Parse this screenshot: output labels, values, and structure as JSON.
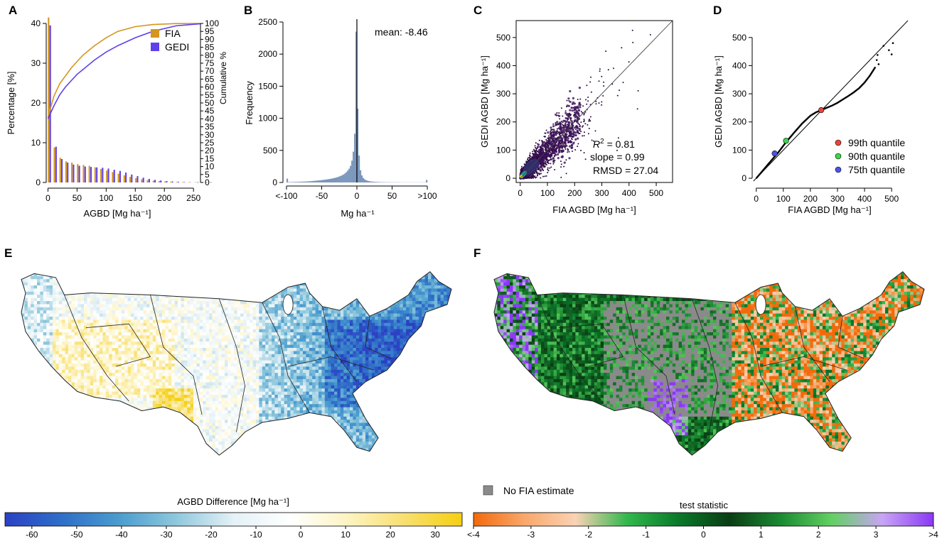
{
  "panels": {
    "A": {
      "label": "A"
    },
    "B": {
      "label": "B"
    },
    "C": {
      "label": "C"
    },
    "D": {
      "label": "D"
    },
    "E": {
      "label": "E"
    },
    "F": {
      "label": "F"
    }
  },
  "chart_data": [
    {
      "id": "A",
      "type": "bar",
      "xlabel": "AGBD [Mg ha⁻¹]",
      "ylabel": "Percentage [%]",
      "ylabel_right": "Cumulative %",
      "xlim": [
        -3,
        262
      ],
      "ylim": [
        0,
        40
      ],
      "ylim_right": [
        0,
        100
      ],
      "x_ticks": [
        "0",
        "50",
        "100",
        "150",
        "200",
        "250"
      ],
      "x_tick_values": [
        0,
        50,
        100,
        150,
        200,
        250
      ],
      "y_ticks": [
        "0",
        "10",
        "20",
        "30",
        "40"
      ],
      "y_tick_values": [
        0,
        10,
        20,
        30,
        40
      ],
      "y_right_ticks": [
        "0",
        "5",
        "10",
        "15",
        "20",
        "25",
        "30",
        "35",
        "40",
        "45",
        "50",
        "55",
        "60",
        "65",
        "70",
        "75",
        "80",
        "85",
        "90",
        "95",
        "100"
      ],
      "y_right_tick_values": [
        0,
        5,
        10,
        15,
        20,
        25,
        30,
        35,
        40,
        45,
        50,
        55,
        60,
        65,
        70,
        75,
        80,
        85,
        90,
        95,
        100
      ],
      "bin_starts": [
        0,
        10,
        20,
        30,
        40,
        50,
        60,
        70,
        80,
        90,
        100,
        110,
        120,
        130,
        140,
        150,
        160,
        170,
        180,
        190,
        200,
        210,
        220,
        230,
        240,
        250
      ],
      "series": [
        {
          "name": "FIA",
          "color": "#d4961c",
          "values": [
            41.5,
            8.8,
            6.2,
            5.3,
            5.0,
            4.6,
            4.4,
            4.2,
            3.8,
            3.4,
            3.0,
            2.6,
            2.2,
            1.8,
            1.4,
            1.1,
            0.8,
            0.6,
            0.45,
            0.35,
            0.25,
            0.18,
            0.12,
            0.08,
            0.05,
            0.03
          ],
          "cumulative_x": [
            0,
            10,
            20,
            30,
            40,
            50,
            60,
            80,
            100,
            120,
            150,
            180,
            220,
            262
          ],
          "cumulative": [
            41,
            54,
            62,
            67,
            72,
            76,
            80,
            86,
            91,
            95,
            98,
            99.3,
            99.9,
            100
          ]
        },
        {
          "name": "GEDI",
          "color": "#6040ea",
          "values": [
            39.5,
            9.0,
            5.9,
            5.0,
            4.5,
            4.2,
            4.0,
            3.9,
            3.8,
            3.7,
            3.5,
            3.2,
            2.9,
            2.5,
            2.0,
            1.6,
            1.2,
            0.9,
            0.65,
            0.5,
            0.35,
            0.25,
            0.18,
            0.12,
            0.08,
            0.05
          ],
          "cumulative_x": [
            0,
            10,
            20,
            30,
            40,
            50,
            60,
            80,
            100,
            120,
            150,
            180,
            220,
            262
          ],
          "cumulative": [
            40,
            48,
            55,
            60,
            64,
            68,
            71,
            77,
            82,
            86,
            91,
            95,
            98.5,
            99.8
          ]
        }
      ],
      "legend": [
        "FIA",
        "GEDI"
      ]
    },
    {
      "id": "B",
      "type": "bar",
      "title_note": "mean: -8.46",
      "xlabel": "Mg ha⁻¹",
      "ylabel": "Frequency",
      "xlim": [
        -105,
        105
      ],
      "ylim": [
        0,
        2500
      ],
      "x_ticks": [
        "<-100",
        "-50",
        "0",
        "50",
        ">100"
      ],
      "x_tick_values": [
        -100,
        -50,
        0,
        50,
        100
      ],
      "y_ticks": [
        "0",
        "500",
        "1000",
        "1500",
        "2000",
        "2500"
      ],
      "y_tick_values": [
        0,
        500,
        1000,
        1500,
        2000,
        2500
      ],
      "bin_width": 2,
      "bar_color": "#7b97bd",
      "vline": 0,
      "bins_x": [
        -100,
        -98,
        -96,
        -94,
        -92,
        -90,
        -88,
        -86,
        -84,
        -82,
        -80,
        -78,
        -76,
        -74,
        -72,
        -70,
        -68,
        -66,
        -64,
        -62,
        -60,
        -58,
        -56,
        -54,
        -52,
        -50,
        -48,
        -46,
        -44,
        -42,
        -40,
        -38,
        -36,
        -34,
        -32,
        -30,
        -28,
        -26,
        -24,
        -22,
        -20,
        -18,
        -16,
        -14,
        -12,
        -10,
        -8,
        -6,
        -4,
        -2,
        0,
        2,
        4,
        6,
        8,
        10,
        12,
        14,
        16,
        18,
        20,
        22,
        24,
        26,
        28,
        30,
        32,
        34,
        36,
        38,
        40,
        42,
        44,
        46,
        48,
        50,
        52,
        54,
        56,
        58,
        60,
        62,
        64,
        66,
        68,
        70,
        72,
        74,
        76,
        78,
        80,
        82,
        84,
        86,
        88,
        90,
        92,
        94,
        96,
        98
      ],
      "values": [
        60,
        6,
        6,
        7,
        7,
        8,
        9,
        9,
        10,
        11,
        12,
        13,
        14,
        15,
        16,
        18,
        19,
        21,
        23,
        25,
        27,
        29,
        31,
        33,
        35,
        38,
        41,
        44,
        47,
        50,
        54,
        58,
        62,
        67,
        72,
        78,
        85,
        93,
        102,
        112,
        125,
        140,
        160,
        185,
        215,
        260,
        340,
        480,
        760,
        2350,
        1150,
        420,
        190,
        110,
        70,
        48,
        35,
        27,
        21,
        17,
        14,
        12,
        10,
        9,
        8,
        7,
        6,
        6,
        5,
        5,
        4,
        4,
        4,
        4,
        3,
        3,
        3,
        3,
        3,
        3,
        3,
        2,
        2,
        2,
        2,
        2,
        2,
        2,
        2,
        2,
        2,
        2,
        2,
        2,
        2,
        2,
        2,
        2,
        2,
        40
      ]
    },
    {
      "id": "C",
      "type": "scatter",
      "xlabel": "FIA AGBD [Mg ha⁻¹]",
      "ylabel": "GEDI AGBD [Mg ha⁻¹]",
      "xlim": [
        -15,
        560
      ],
      "ylim": [
        -15,
        560
      ],
      "x_ticks": [
        "0",
        "100",
        "200",
        "300",
        "400",
        "500"
      ],
      "x_tick_values": [
        0,
        100,
        200,
        300,
        400,
        500
      ],
      "y_ticks": [
        "0",
        "100",
        "200",
        "300",
        "400",
        "500"
      ],
      "y_tick_values": [
        0,
        100,
        200,
        300,
        400,
        500
      ],
      "identity_line": true,
      "stats": {
        "r2_label": "R",
        "r2_sup": "2",
        "r2_value": " = 0.81",
        "slope": "slope = 0.99",
        "rmsd": "RMSD = 27.04"
      },
      "point_color": "#2a0a3f",
      "dense_center_color": "#1f9e89"
    },
    {
      "id": "D",
      "type": "line",
      "xlabel": "FIA AGBD [Mg ha⁻¹]",
      "ylabel": "GEDI AGBD [Mg ha⁻¹]",
      "xlim": [
        -15,
        560
      ],
      "ylim": [
        -15,
        560
      ],
      "x_ticks": [
        "0",
        "100",
        "200",
        "300",
        "400",
        "500"
      ],
      "x_tick_values": [
        0,
        100,
        200,
        300,
        400,
        500
      ],
      "y_ticks": [
        "0",
        "100",
        "200",
        "300",
        "400",
        "500"
      ],
      "y_tick_values": [
        0,
        100,
        200,
        300,
        400,
        500
      ],
      "qq_x": [
        0,
        20,
        40,
        60,
        80,
        110,
        140,
        170,
        200,
        220,
        240,
        260,
        280,
        300,
        320,
        340,
        360,
        380,
        400,
        420,
        440
      ],
      "qq_y": [
        0,
        22,
        45,
        68,
        90,
        128,
        162,
        195,
        222,
        234,
        242,
        250,
        258,
        268,
        280,
        292,
        305,
        320,
        340,
        365,
        395
      ],
      "qq_outliers_x": [
        445,
        448,
        452,
        470,
        490,
        500,
        505
      ],
      "qq_outliers_y": [
        420,
        438,
        405,
        470,
        455,
        440,
        480
      ],
      "quantiles": [
        {
          "label": "99th quantile",
          "x": 240,
          "y": 242,
          "color": "#e8453c"
        },
        {
          "label": "90th quantile",
          "x": 110,
          "y": 133,
          "color": "#3fd44b"
        },
        {
          "label": "75th quantile",
          "x": 68,
          "y": 88,
          "color": "#4a55e0"
        }
      ]
    },
    {
      "id": "E",
      "type": "heatmap",
      "colorbar_title": "AGBD Difference [Mg ha⁻¹]",
      "colorbar_ticks": [
        "-60",
        "-50",
        "-40",
        "-30",
        "-20",
        "-10",
        "0",
        "10",
        "20",
        "30"
      ],
      "colorbar_tick_values": [
        -60,
        -50,
        -40,
        -30,
        -20,
        -10,
        0,
        10,
        20,
        30
      ],
      "colorbar_range": [
        -66,
        36
      ],
      "colors": [
        "#2b41c4",
        "#2f6fc8",
        "#4a9ccf",
        "#8fc8dd",
        "#e4f1f6",
        "#ffffff",
        "#fdf3c2",
        "#f8df6e",
        "#f5cf10"
      ]
    },
    {
      "id": "F",
      "type": "heatmap",
      "colorbar_title": "test statistic",
      "colorbar_ticks": [
        "<-4",
        "-3",
        "-2",
        "-1",
        "0",
        "1",
        "2",
        "3",
        ">4"
      ],
      "colorbar_tick_values": [
        -4,
        -3,
        -2,
        -1,
        0,
        1,
        2,
        3,
        4
      ],
      "colorbar_range": [
        -4,
        4
      ],
      "na_label": "No FIA estimate",
      "na_color": "#8a8a8a",
      "colors": [
        "#f26a0c",
        "#f8a86a",
        "#fad2b4",
        "#32b84d",
        "#0a7a2a",
        "#0a3d14",
        "#1a8a32",
        "#62d062",
        "#c8a4f5",
        "#8a38f4"
      ]
    }
  ]
}
